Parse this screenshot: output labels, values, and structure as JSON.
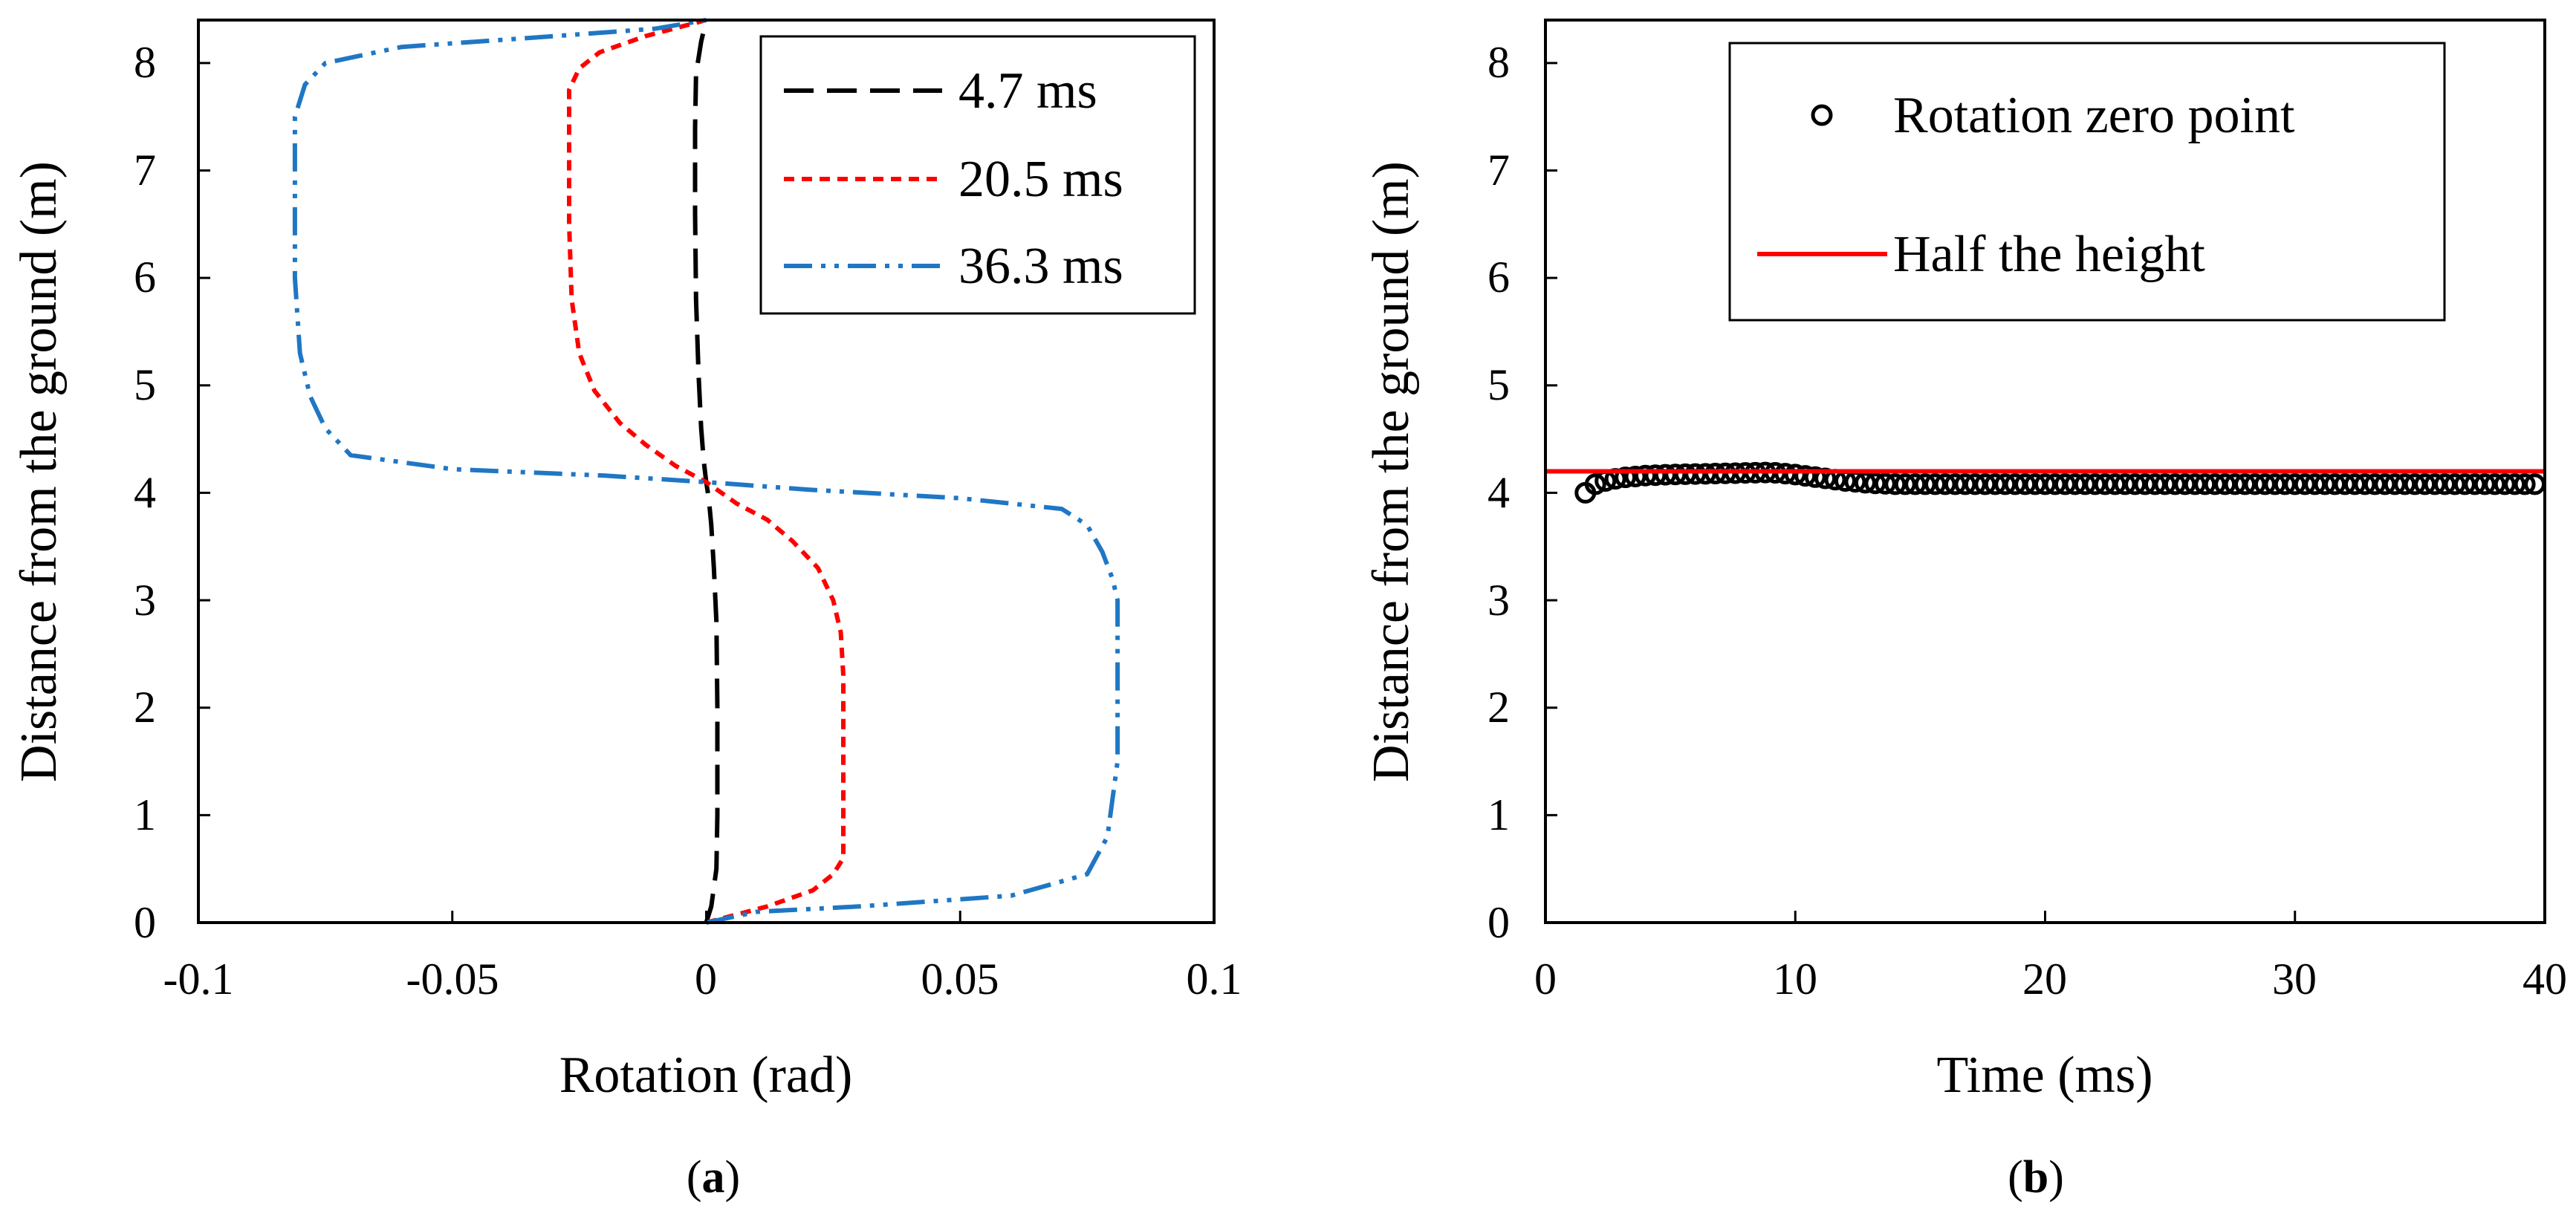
{
  "chart_data": [
    {
      "id": "a",
      "type": "line",
      "sub_label": {
        "open": "(",
        "letter": "a",
        "close": ")"
      },
      "xlabel": "Rotation (rad)",
      "ylabel": "Distance from the ground (m)",
      "xlim": [
        -0.1,
        0.1
      ],
      "ylim": [
        0,
        8.4
      ],
      "xticks": [
        -0.1,
        -0.05,
        0,
        0.05,
        0.1
      ],
      "xtick_labels": [
        "-0.1",
        "-0.05",
        "0",
        "0.05",
        "0.1"
      ],
      "yticks": [
        0,
        1,
        2,
        3,
        4,
        5,
        6,
        7,
        8
      ],
      "ytick_labels": [
        "0",
        "1",
        "2",
        "3",
        "4",
        "5",
        "6",
        "7",
        "8"
      ],
      "grid": false,
      "legend_position": "top-right",
      "series": [
        {
          "name": "4.7 ms",
          "color": "#000000",
          "style": "dashed",
          "x": [
            0.0,
            0.001,
            0.002,
            0.0022,
            0.0022,
            0.002,
            0.0015,
            0.001,
            0.0005,
            0.0,
            -0.0005,
            -0.001,
            -0.0015,
            -0.002,
            -0.0022,
            -0.0022,
            -0.002,
            -0.001,
            0.0
          ],
          "y": [
            0.0,
            0.15,
            0.5,
            1.0,
            2.0,
            2.8,
            3.3,
            3.7,
            3.95,
            4.1,
            4.3,
            4.6,
            5.1,
            5.8,
            6.6,
            7.4,
            7.9,
            8.2,
            8.4
          ]
        },
        {
          "name": "20.5 ms",
          "color": "#ff0000",
          "style": "dotted",
          "x": [
            0.0,
            0.012,
            0.021,
            0.025,
            0.027,
            0.027,
            0.027,
            0.0265,
            0.025,
            0.022,
            0.017,
            0.012,
            0.006,
            0.0,
            -0.006,
            -0.012,
            -0.017,
            -0.022,
            -0.025,
            -0.0265,
            -0.027,
            -0.027,
            -0.027,
            -0.025,
            -0.021,
            -0.012,
            0.0
          ],
          "y": [
            0.0,
            0.15,
            0.3,
            0.45,
            0.6,
            1.5,
            2.3,
            2.7,
            3.0,
            3.3,
            3.55,
            3.75,
            3.9,
            4.1,
            4.25,
            4.45,
            4.65,
            4.95,
            5.3,
            5.8,
            6.5,
            7.3,
            7.75,
            7.95,
            8.1,
            8.25,
            8.4
          ]
        },
        {
          "name": "36.3 ms",
          "color": "#1f77c4",
          "style": "dashdotdot",
          "x": [
            0.0,
            0.01,
            0.03,
            0.06,
            0.075,
            0.079,
            0.081,
            0.081,
            0.081,
            0.08,
            0.078,
            0.075,
            0.07,
            0.05,
            0.02,
            0.0,
            -0.02,
            -0.05,
            -0.07,
            -0.075,
            -0.078,
            -0.08,
            -0.081,
            -0.081,
            -0.081,
            -0.079,
            -0.075,
            -0.06,
            -0.03,
            -0.01,
            0.0
          ],
          "y": [
            0.0,
            0.1,
            0.15,
            0.25,
            0.45,
            0.8,
            1.5,
            2.5,
            3.0,
            3.2,
            3.45,
            3.7,
            3.85,
            3.95,
            4.03,
            4.1,
            4.16,
            4.22,
            4.35,
            4.6,
            4.9,
            5.3,
            6.0,
            7.0,
            7.5,
            7.8,
            8.0,
            8.15,
            8.25,
            8.32,
            8.4
          ]
        }
      ]
    },
    {
      "id": "b",
      "type": "scatter",
      "sub_label": {
        "open": "(",
        "letter": "b",
        "close": ")"
      },
      "xlabel": "Time (ms)",
      "ylabel": "Distance from the ground (m)",
      "xlim": [
        0,
        40
      ],
      "ylim": [
        0,
        8.4
      ],
      "xticks": [
        0,
        10,
        20,
        30,
        40
      ],
      "xtick_labels": [
        "0",
        "10",
        "20",
        "30",
        "40"
      ],
      "yticks": [
        0,
        1,
        2,
        3,
        4,
        5,
        6,
        7,
        8
      ],
      "ytick_labels": [
        "0",
        "1",
        "2",
        "3",
        "4",
        "5",
        "6",
        "7",
        "8"
      ],
      "grid": false,
      "legend_position": "top-right",
      "series": [
        {
          "name": "Rotation zero point",
          "type": "scatter",
          "marker": "open-circle",
          "color": "#000000",
          "x_start": 1.6,
          "x_step": 0.4,
          "x_end": 39.6,
          "y_profile": [
            [
              1.6,
              4.0
            ],
            [
              2.0,
              4.08
            ],
            [
              2.4,
              4.11
            ],
            [
              3.0,
              4.14
            ],
            [
              4.0,
              4.16
            ],
            [
              5.0,
              4.17
            ],
            [
              7.0,
              4.18
            ],
            [
              9.0,
              4.19
            ],
            [
              10.0,
              4.17
            ],
            [
              11.0,
              4.14
            ],
            [
              12.0,
              4.11
            ],
            [
              13.0,
              4.09
            ],
            [
              14.0,
              4.08
            ],
            [
              39.6,
              4.08
            ]
          ]
        },
        {
          "name": "Half the height",
          "type": "line",
          "color": "#ff0000",
          "style": "solid",
          "x": [
            0,
            40
          ],
          "y": [
            4.2,
            4.2
          ]
        }
      ]
    }
  ]
}
